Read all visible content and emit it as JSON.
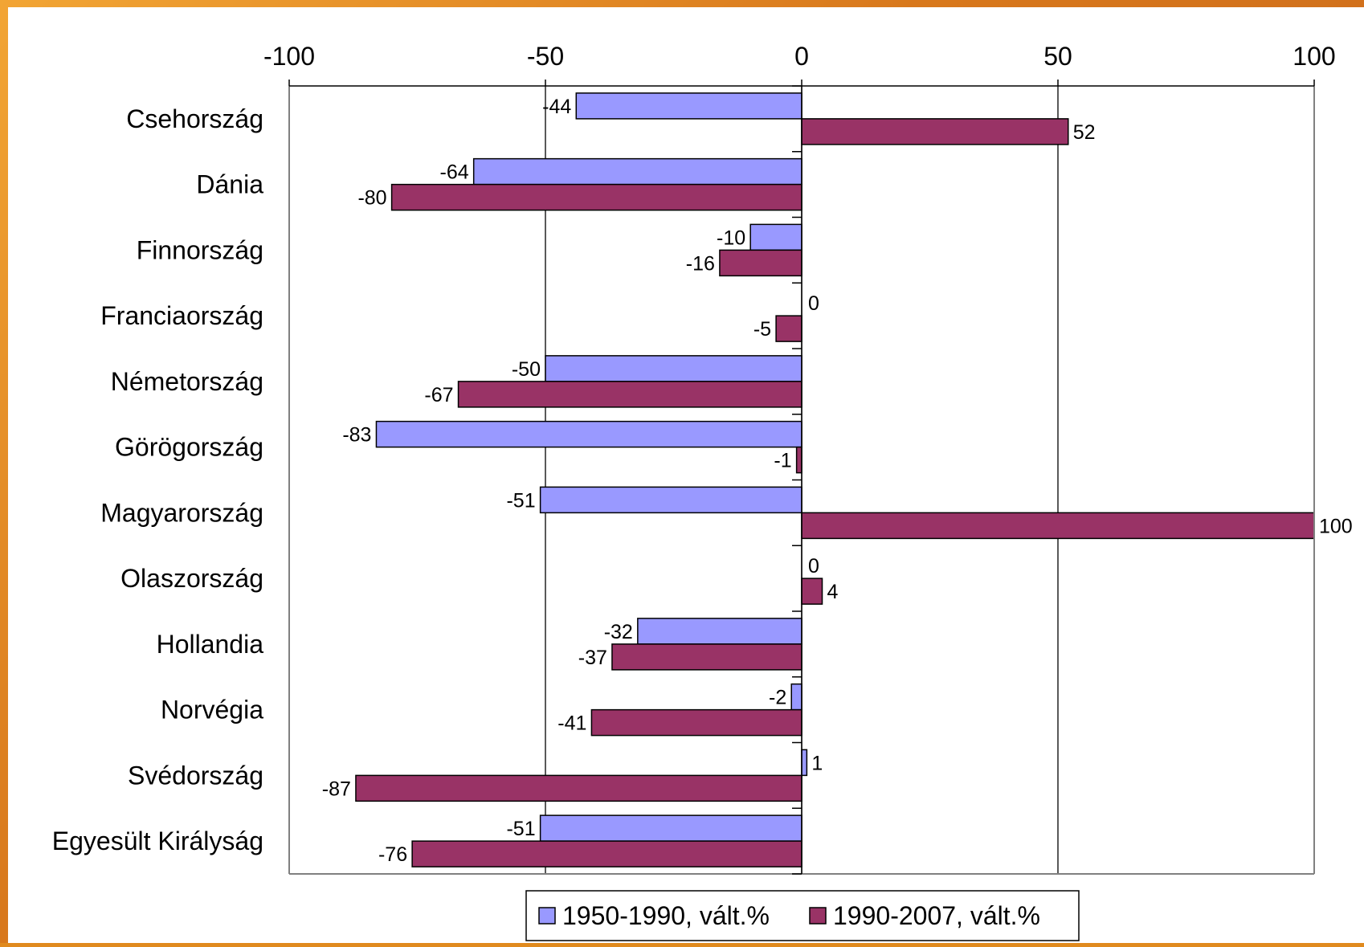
{
  "chart_data": {
    "type": "bar",
    "orientation": "horizontal",
    "categories": [
      "Csehország",
      "Dánia",
      "Finnország",
      "Franciaország",
      "Németország",
      "Görögország",
      "Magyarország",
      "Olaszország",
      "Hollandia",
      "Norvégia",
      "Svédország",
      "Egyesült Királyság"
    ],
    "series": [
      {
        "name": "1950-1990, vált.%",
        "color": "#9999ff",
        "values": [
          -44,
          -64,
          -10,
          0,
          -50,
          -83,
          -51,
          0,
          -32,
          -2,
          1,
          -51
        ]
      },
      {
        "name": "1990-2007, vált.%",
        "color": "#993366",
        "values": [
          52,
          -80,
          -16,
          -5,
          -67,
          -1,
          100,
          4,
          -37,
          -41,
          -87,
          -76
        ]
      }
    ],
    "xlim": [
      -100,
      100
    ],
    "xticks": [
      "-100",
      "-50",
      "0",
      "50",
      "100"
    ],
    "tick_values": [
      -100,
      -50,
      0,
      50,
      100
    ],
    "grid": "vertical",
    "legend_position": "bottom"
  }
}
